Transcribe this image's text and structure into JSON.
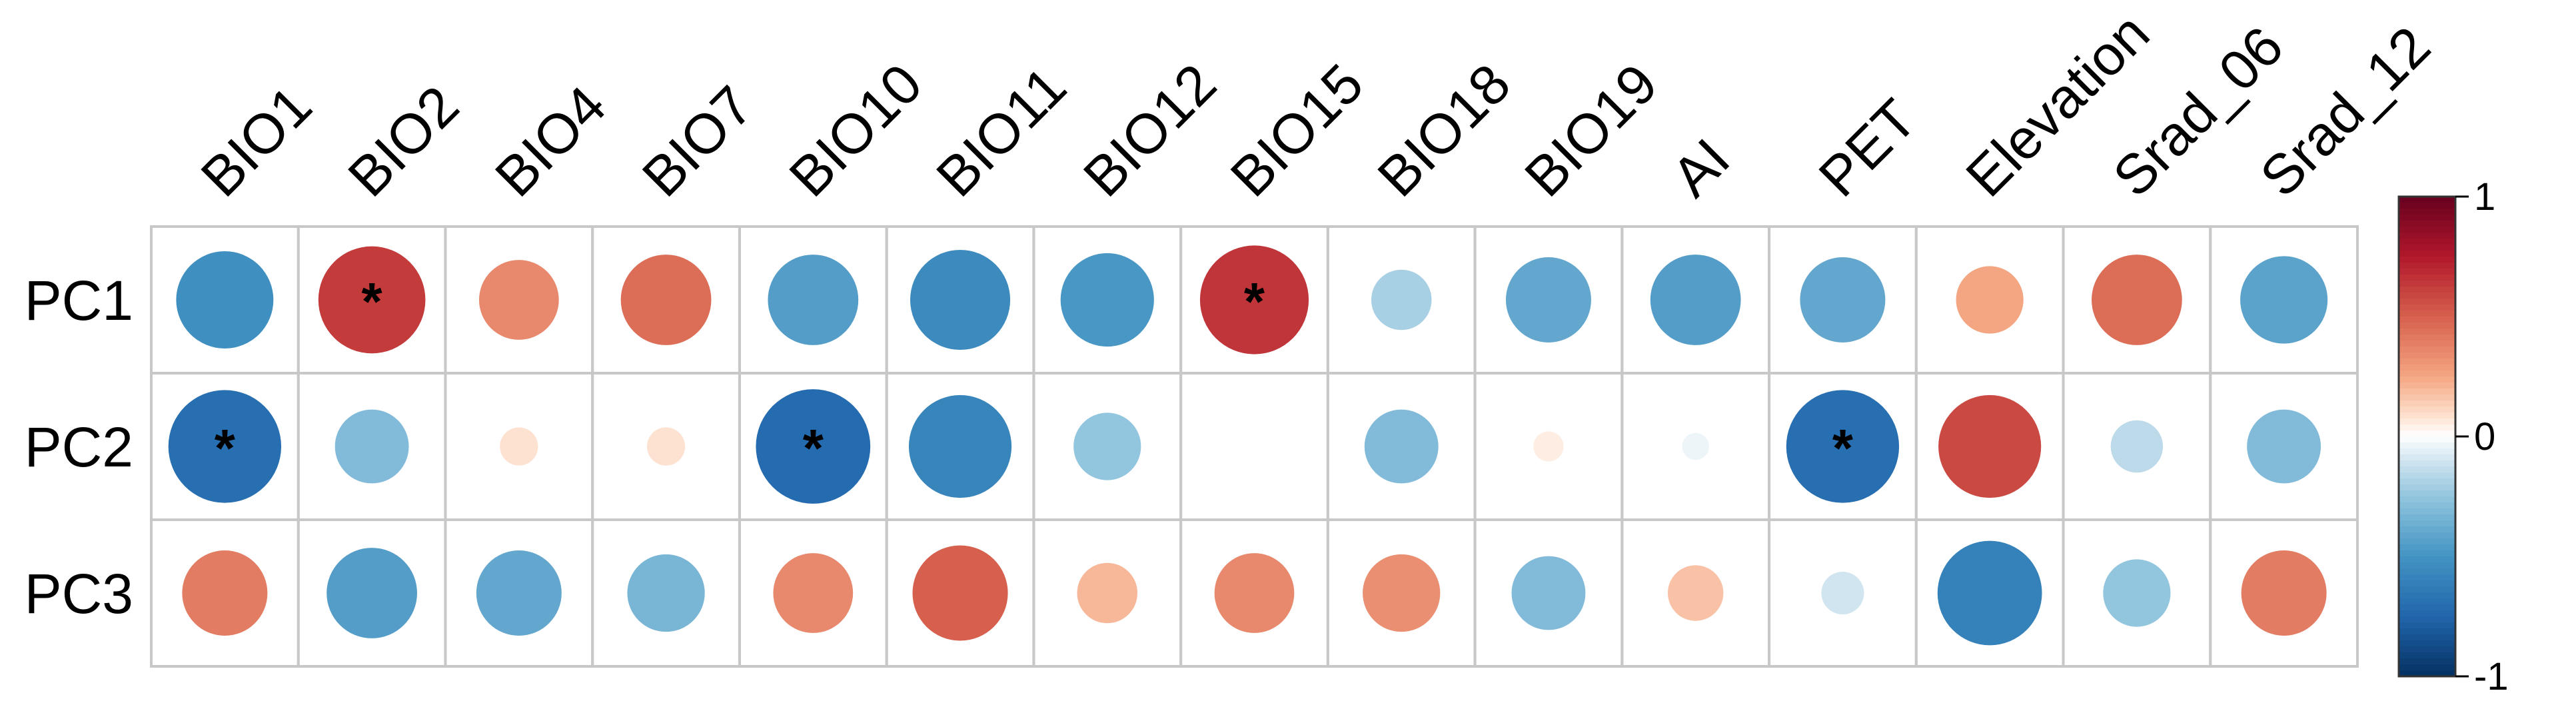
{
  "chart_data": {
    "type": "heatmap",
    "subtype": "correlation-circle-matrix",
    "columns": [
      "BIO1",
      "BIO2",
      "BIO4",
      "BIO7",
      "BIO10",
      "BIO11",
      "BIO12",
      "BIO15",
      "BIO18",
      "BIO19",
      "AI",
      "PET",
      "Elevation",
      "Srad_06",
      "Srad_12"
    ],
    "rows": [
      "PC1",
      "PC2",
      "PC3"
    ],
    "values": [
      [
        -0.52,
        0.63,
        0.35,
        0.45,
        -0.45,
        -0.55,
        -0.48,
        0.65,
        -0.2,
        -0.4,
        -0.45,
        -0.4,
        0.25,
        0.45,
        -0.42
      ],
      [
        -0.7,
        -0.3,
        0.08,
        0.08,
        -0.72,
        -0.58,
        -0.25,
        0.0,
        -0.3,
        0.05,
        -0.04,
        -0.7,
        0.58,
        -0.15,
        -0.3
      ],
      [
        0.4,
        -0.45,
        -0.4,
        -0.33,
        0.35,
        0.5,
        0.2,
        0.35,
        0.33,
        -0.3,
        0.17,
        -0.1,
        -0.6,
        -0.25,
        0.4
      ]
    ],
    "significant": [
      [
        false,
        true,
        false,
        false,
        false,
        false,
        false,
        true,
        false,
        false,
        false,
        false,
        false,
        false,
        false
      ],
      [
        true,
        false,
        false,
        false,
        true,
        false,
        false,
        false,
        false,
        false,
        false,
        true,
        false,
        false,
        false
      ],
      [
        false,
        false,
        false,
        false,
        false,
        false,
        false,
        false,
        false,
        false,
        false,
        false,
        false,
        false,
        false
      ]
    ],
    "significance_marker": "*",
    "colorbar": {
      "range": [
        -1,
        1
      ],
      "ticks": [
        "1",
        "0",
        "-1"
      ],
      "low_color": "#053061",
      "mid_color": "#ffffff",
      "high_color": "#67001f"
    },
    "grid": true,
    "legend_placement": "right"
  }
}
